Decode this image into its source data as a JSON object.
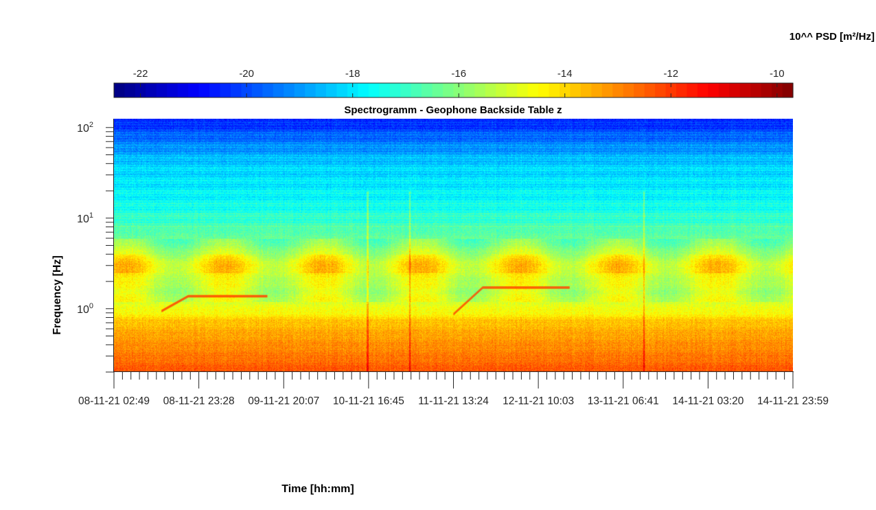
{
  "chart_data": {
    "type": "heatmap",
    "title": "Spectrogramm - Geophone Backside Table z",
    "xlabel": "Time [hh:mm]",
    "ylabel": "Frequency [Hz]",
    "y_scale": "log",
    "ylim": [
      0.2,
      125
    ],
    "y_ticks": [
      {
        "value": 1,
        "label_base": "10",
        "label_exp": "0"
      },
      {
        "value": 10,
        "label_base": "10",
        "label_exp": "1"
      },
      {
        "value": 100,
        "label_base": "10",
        "label_exp": "2"
      }
    ],
    "x_tick_labels": [
      "08-11-21 02:49",
      "08-11-21 23:28",
      "09-11-21 20:07",
      "10-11-21 16:45",
      "11-11-21 13:24",
      "12-11-21 10:03",
      "13-11-21 06:41",
      "14-11-21 03:20",
      "14-11-21 23:59"
    ],
    "colorbar": {
      "title": "10^^ PSD [m²/Hz]",
      "colormap": "jet",
      "range": [
        -22.5,
        -9.7
      ],
      "ticks": [
        "-22",
        "-20",
        "-18",
        "-16",
        "-14",
        "-12",
        "-10"
      ],
      "tick_values": [
        -22,
        -20,
        -18,
        -16,
        -14,
        -12,
        -10
      ]
    },
    "psd_profile_log10": [
      {
        "freq_hz": 0.2,
        "psd": -12.3
      },
      {
        "freq_hz": 0.3,
        "psd": -12.8
      },
      {
        "freq_hz": 0.5,
        "psd": -13.3
      },
      {
        "freq_hz": 0.75,
        "psd": -13.8
      },
      {
        "freq_hz": 0.9,
        "psd": -14.5
      },
      {
        "freq_hz": 1.5,
        "psd": -15.3
      },
      {
        "freq_hz": 3,
        "psd": -14.6
      },
      {
        "freq_hz": 6,
        "psd": -16.4
      },
      {
        "freq_hz": 15,
        "psd": -17.6
      },
      {
        "freq_hz": 40,
        "psd": -18.3
      },
      {
        "freq_hz": 80,
        "psd": -19.6
      },
      {
        "freq_hz": 125,
        "psd": -20.6
      }
    ],
    "tonal_lines": [
      {
        "name": "",
        "t_start": 0.07,
        "t_end": 0.225,
        "f_start": 0.95,
        "f_end": 1.38
      },
      {
        "name": "",
        "t_start": 0.5,
        "t_end": 0.67,
        "f_start": 0.88,
        "f_end": 1.72
      }
    ]
  }
}
